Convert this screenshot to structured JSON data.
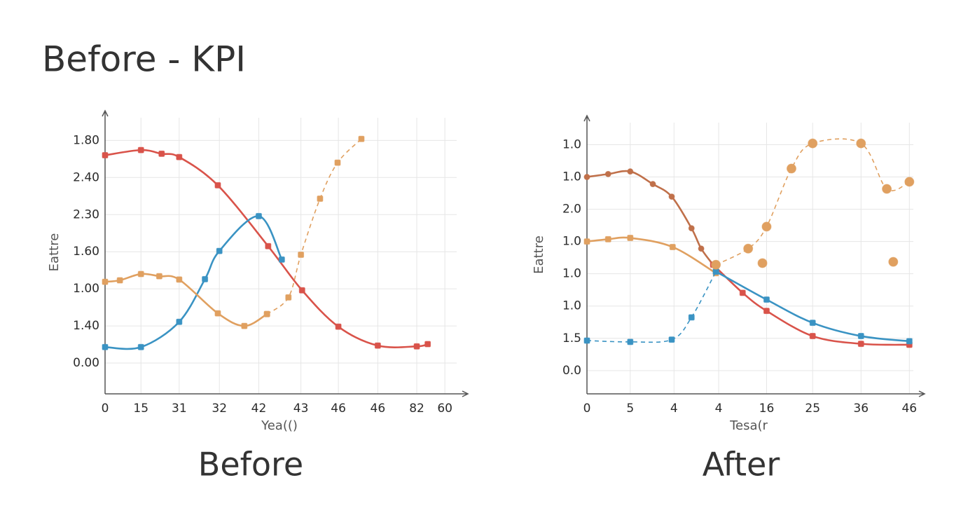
{
  "header": {
    "title": "Before - KPI"
  },
  "chart_data": [
    {
      "type": "line",
      "caption": "Before",
      "x_label": "Yea(()",
      "y_label": "Eattre",
      "grid": true,
      "xlim": [
        0,
        9.3
      ],
      "ylim": [
        -0.83,
        6.8
      ],
      "xticks": [
        0,
        {
          "value": 0.92,
          "label": "15"
        },
        {
          "value": 1.9,
          "label": "31"
        },
        {
          "value": 2.93,
          "label": "32"
        },
        {
          "value": 3.94,
          "label": "42"
        },
        {
          "value": 5.02,
          "label": "43"
        },
        {
          "value": 5.98,
          "label": "46"
        },
        {
          "value": 6.99,
          "label": "46"
        },
        {
          "value": 7.99,
          "label": "82"
        },
        {
          "value": 8.71,
          "label": "60"
        }
      ],
      "yticks": [
        {
          "value": 0,
          "label": "0.00"
        },
        {
          "value": 1,
          "label": "1.40"
        },
        {
          "value": 2,
          "label": "1.00"
        },
        {
          "value": 3,
          "label": "1.60"
        },
        {
          "value": 4,
          "label": "2.30"
        },
        {
          "value": 5,
          "label": "2.40"
        },
        {
          "value": 6,
          "label": "1.80"
        }
      ],
      "series": [
        {
          "color": "#d9534a",
          "marker": "square",
          "dashed": false,
          "x": [
            0,
            0.92,
            1.45,
            1.9,
            2.89,
            4.18,
            5.05,
            5.98,
            6.99,
            7.99,
            8.27
          ],
          "values": [
            5.6,
            5.74,
            5.64,
            5.55,
            4.79,
            3.15,
            1.96,
            0.98,
            0.47,
            0.45,
            0.51
          ]
        },
        {
          "color": "#3a93c3",
          "marker": "square",
          "dashed": false,
          "x": [
            0,
            0.92,
            1.9,
            2.56,
            2.93,
            3.94,
            4.53
          ],
          "values": [
            0.43,
            0.43,
            1.11,
            2.26,
            3.02,
            3.96,
            2.79
          ]
        },
        {
          "color": "#e0a060",
          "marker": "square",
          "dashed": false,
          "x": [
            0,
            0.38,
            0.92,
            1.39,
            1.9,
            2.89,
            3.57,
            4.15
          ],
          "values": [
            2.19,
            2.23,
            2.4,
            2.34,
            2.25,
            1.34,
            1.0,
            1.32
          ]
        },
        {
          "color": "#e0a060",
          "marker": "square",
          "dashed": true,
          "x": [
            4.15,
            4.7,
            5.02,
            5.51,
            5.96,
            6.57
          ],
          "values": [
            1.32,
            1.77,
            2.92,
            4.43,
            5.4,
            6.04
          ]
        }
      ]
    },
    {
      "type": "line",
      "caption": "After",
      "x_label": "Tesa(r",
      "y_label": "Eattre",
      "grid": true,
      "xlim": [
        0,
        7.33
      ],
      "ylim": [
        -0.72,
        7.9
      ],
      "xticks": [
        0,
        {
          "value": 0.94,
          "label": "5"
        },
        {
          "value": 1.89,
          "label": "4"
        },
        {
          "value": 2.86,
          "label": "4"
        },
        {
          "value": 3.9,
          "label": "16"
        },
        {
          "value": 4.9,
          "label": "25"
        },
        {
          "value": 5.95,
          "label": "36"
        },
        {
          "value": 7.0,
          "label": "46"
        }
      ],
      "yticks": [
        {
          "value": 0,
          "label": "0.0"
        },
        {
          "value": 1,
          "label": "1.5"
        },
        {
          "value": 2,
          "label": "1.0"
        },
        {
          "value": 3,
          "label": "1.0"
        },
        {
          "value": 4,
          "label": "1.0"
        },
        {
          "value": 5,
          "label": "2.0"
        },
        {
          "value": 6,
          "label": "1.0"
        },
        {
          "value": 7,
          "label": "1.0"
        }
      ],
      "series": [
        {
          "color": "#c0704a",
          "marker": "circle",
          "dashed": false,
          "x": [
            0,
            0.46,
            0.94,
            1.43,
            1.84,
            2.27,
            2.48,
            2.74
          ],
          "values": [
            6.0,
            6.09,
            6.17,
            5.78,
            5.39,
            4.41,
            3.78,
            3.28
          ]
        },
        {
          "color": "#d9534a",
          "marker": "square",
          "dashed": false,
          "x": [
            2.74,
            3.38,
            3.9,
            4.9,
            5.95,
            7.0
          ],
          "values": [
            3.28,
            2.41,
            1.85,
            1.07,
            0.83,
            0.8
          ]
        },
        {
          "color": "#e0a060",
          "marker": "square",
          "dashed": false,
          "x": [
            0,
            0.46,
            0.94,
            1.86,
            2.8
          ],
          "values": [
            4.0,
            4.07,
            4.11,
            3.83,
            3.02
          ]
        },
        {
          "color": "#3a93c3",
          "marker": "square",
          "dashed": true,
          "x": [
            0,
            0.94,
            1.84,
            2.27,
            2.8
          ],
          "values": [
            0.93,
            0.89,
            0.96,
            1.65,
            3.07
          ]
        },
        {
          "color": "#3a93c3",
          "marker": "square",
          "dashed": false,
          "x": [
            2.8,
            3.9,
            4.9,
            5.95,
            7.0
          ],
          "values": [
            3.07,
            2.2,
            1.48,
            1.07,
            0.91
          ]
        },
        {
          "color": "#e0a060",
          "marker": "circle",
          "dashed": true,
          "x": [
            2.8,
            3.5,
            3.9,
            4.44,
            4.9,
            5.95,
            6.51,
            7.0
          ],
          "values": [
            3.28,
            3.78,
            4.46,
            6.26,
            7.04,
            7.04,
            5.63,
            5.85
          ]
        },
        {
          "color": "#e0a060",
          "marker": "circle",
          "dashed": false,
          "lineless": true,
          "x": [
            3.81,
            6.65
          ],
          "values": [
            3.33,
            3.37
          ]
        }
      ]
    }
  ]
}
